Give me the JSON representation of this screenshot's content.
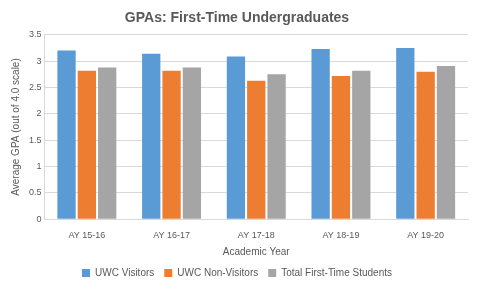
{
  "chart_data": {
    "type": "bar",
    "title": "GPAs: First-Time Undergraduates",
    "x_label": "Academic Year",
    "y_label": "Average GPA (out of 4.0 scale)",
    "categories": [
      "AY 15-16",
      "AY 16-17",
      "AY 17-18",
      "AY 18-19",
      "AY 19-20"
    ],
    "series": [
      {
        "name": "UWC Visitors",
        "color": "#5b9bd5",
        "values": [
          3.2,
          3.14,
          3.09,
          3.23,
          3.25
        ]
      },
      {
        "name": "UWC Non-Visitors",
        "color": "#ed7d31",
        "values": [
          2.82,
          2.82,
          2.63,
          2.72,
          2.8
        ]
      },
      {
        "name": "Total First-Time Students",
        "color": "#a5a5a5",
        "values": [
          2.88,
          2.88,
          2.75,
          2.82,
          2.91
        ]
      }
    ],
    "ylim": [
      0,
      3.5
    ],
    "yticks": [
      0,
      0.5,
      1,
      1.5,
      2,
      2.5,
      3,
      3.5
    ],
    "grid": true,
    "legend": "bottom"
  }
}
